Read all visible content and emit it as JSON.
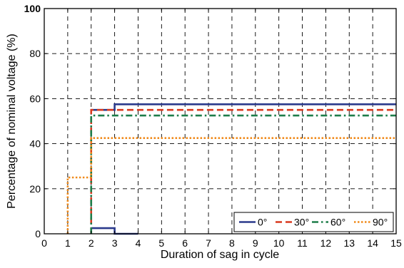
{
  "chart_data": {
    "type": "line",
    "title": "",
    "xlabel": "Duration of sag in cycle",
    "ylabel": "Percentage of nominal voltage (%)",
    "xlim": [
      0,
      15
    ],
    "ylim": [
      0,
      100
    ],
    "xticks": [
      "0",
      "1",
      "2",
      "3",
      "4",
      "5",
      "6",
      "7",
      "8",
      "9",
      "10",
      "11",
      "12",
      "13",
      "14",
      "15"
    ],
    "yticks": [
      "0",
      "20",
      "40",
      "60",
      "80",
      "100"
    ],
    "grid": true,
    "legend_position": "bottom-right",
    "series": [
      {
        "name": "0°",
        "color": "#2b3a8c",
        "style": "solid",
        "segments": [
          [
            [
              2,
              2.5
            ],
            [
              3,
              2.5
            ],
            [
              3,
              0
            ],
            [
              4,
              0
            ]
          ],
          [
            [
              2,
              55
            ],
            [
              3,
              55
            ],
            [
              3,
              57.5
            ],
            [
              15,
              57.5
            ]
          ]
        ]
      },
      {
        "name": "30°",
        "color": "#d9391f",
        "style": "dashed",
        "segments": [
          [
            [
              2,
              0
            ],
            [
              2,
              55
            ],
            [
              15,
              55
            ]
          ]
        ]
      },
      {
        "name": "60°",
        "color": "#1e7d4a",
        "style": "dashdot",
        "segments": [
          [
            [
              2,
              0
            ],
            [
              2,
              52.5
            ],
            [
              15,
              52.5
            ]
          ]
        ]
      },
      {
        "name": "90°",
        "color": "#f08a1a",
        "style": "dotted",
        "segments": [
          [
            [
              1,
              0
            ],
            [
              1,
              25
            ],
            [
              2,
              25
            ],
            [
              2,
              42.5
            ],
            [
              15,
              42.5
            ]
          ]
        ]
      }
    ]
  }
}
